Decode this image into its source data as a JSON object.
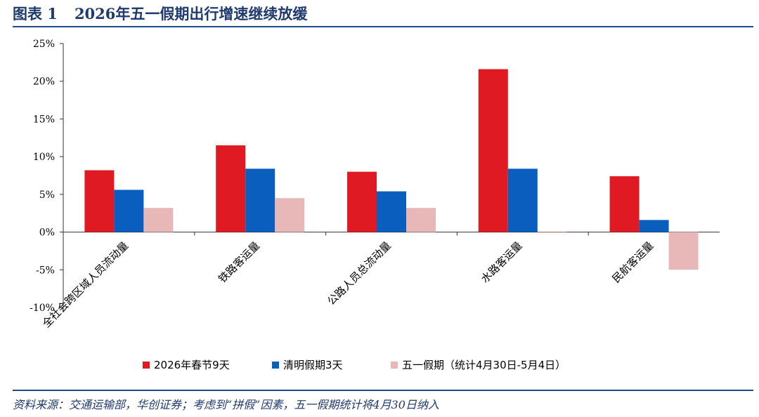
{
  "header": {
    "figure_label": "图表 1",
    "title": "2026年五一假期出行增速继续放缓"
  },
  "footer": {
    "source": "资料来源：交通运输部，华创证券；考虑到“拼假”因素，五一假期统计将4月30日纳入"
  },
  "colors": {
    "header_text": "#1f3a6e",
    "rule": "#1f4b8c",
    "series": [
      "#e01a22",
      "#0a5ebd",
      "#e8b7b7"
    ]
  },
  "chart_data": {
    "type": "bar",
    "categories": [
      "全社会跨区域人员流动量",
      "铁路客运量",
      "公路人员总流动量",
      "水路客运量",
      "民航客运量"
    ],
    "series": [
      {
        "name": "2026年春节9天",
        "values": [
          8.2,
          11.5,
          8.0,
          21.6,
          7.4
        ]
      },
      {
        "name": "清明假期3天",
        "values": [
          5.6,
          8.4,
          5.4,
          8.4,
          1.6
        ]
      },
      {
        "name": "五一假期（统计4月30日-5月4日）",
        "values": [
          3.2,
          4.5,
          3.2,
          -0.1,
          -5.0
        ]
      }
    ],
    "y_ticks": [
      "25%",
      "20%",
      "15%",
      "10%",
      "5%",
      "0%",
      "-5%",
      "-10%"
    ],
    "ylim": [
      -10,
      25
    ],
    "y_unit": "%",
    "legend_position": "bottom",
    "grid": false
  }
}
